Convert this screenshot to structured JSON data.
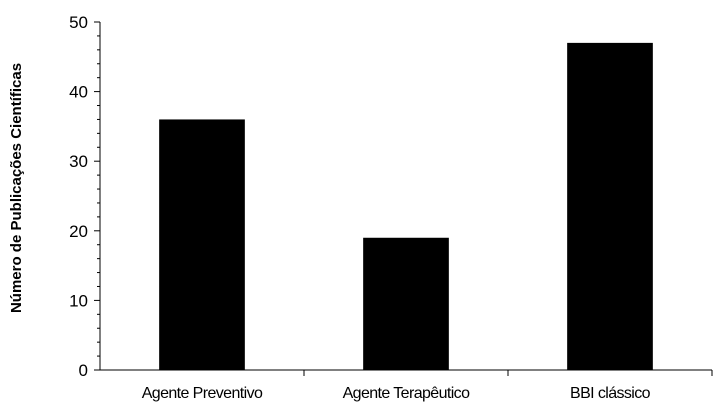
{
  "chart_data": {
    "type": "bar",
    "categories": [
      "Agente Preventivo",
      "Agente Terapêutico",
      "BBI clássico"
    ],
    "values": [
      36,
      19,
      47
    ],
    "title": "",
    "xlabel": "",
    "ylabel": "Número de Publicações Científicas",
    "ylim": [
      0,
      50
    ],
    "major_ticks": [
      0,
      10,
      20,
      30,
      40,
      50
    ],
    "minor_tick_step": 2,
    "grid": false,
    "bar_color": "#000000",
    "axis_color": "#000000"
  }
}
